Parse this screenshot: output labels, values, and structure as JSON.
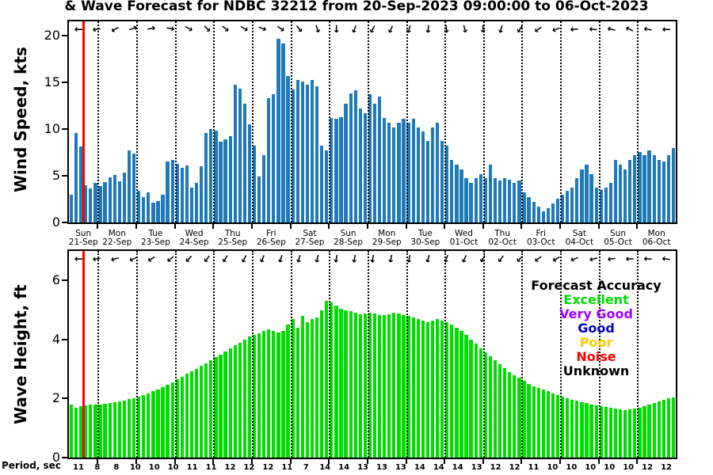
{
  "title": "& Wave Forecast for NDBC 32212 from 20-Sep-2023 09:00:00 to 06-Oct-2023",
  "legend": {
    "heading": "Forecast Accuracy",
    "items": [
      {
        "label": "Excellent",
        "color": "#00DD00"
      },
      {
        "label": "Very Good",
        "color": "#A000FF"
      },
      {
        "label": "Good",
        "color": "#0000C8"
      },
      {
        "label": "Poor",
        "color": "#FFC800"
      },
      {
        "label": "Noise",
        "color": "#FF0000"
      },
      {
        "label": "Unknown",
        "color": "#000000"
      }
    ]
  },
  "x_axis": {
    "lead_in_bars": 6,
    "bars_per_day": 8,
    "num_day_boundaries": 15,
    "red_line_slot": 3,
    "first_label_center_slot": 3,
    "day_labels": [
      {
        "day": "Sun",
        "date": "21-Sep"
      },
      {
        "day": "Mon",
        "date": "22-Sep"
      },
      {
        "day": "Tue",
        "date": "23-Sep"
      },
      {
        "day": "Wed",
        "date": "24-Sep"
      },
      {
        "day": "Thu",
        "date": "25-Sep"
      },
      {
        "day": "Fri",
        "date": "26-Sep"
      },
      {
        "day": "Sat",
        "date": "27-Sep"
      },
      {
        "day": "Sun",
        "date": "28-Sep"
      },
      {
        "day": "Mon",
        "date": "29-Sep"
      },
      {
        "day": "Tue",
        "date": "30-Sep"
      },
      {
        "day": "Wed",
        "date": "01-Oct"
      },
      {
        "day": "Thu",
        "date": "02-Oct"
      },
      {
        "day": "Fri",
        "date": "03-Oct"
      },
      {
        "day": "Sat",
        "date": "04-Oct"
      },
      {
        "day": "Sun",
        "date": "05-Oct"
      },
      {
        "day": "Mon",
        "date": "06-Oct"
      }
    ]
  },
  "chart_data": [
    {
      "type": "bar",
      "panel": "wind",
      "title": "& Wave Forecast for NDBC 32212 from 20-Sep-2023 09:00:00 to 06-Oct-2023",
      "ylabel": "Wind Speed, kts",
      "ylim": [
        0,
        21.5
      ],
      "yticks": [
        0,
        5,
        10,
        15,
        20
      ],
      "bar_color": "#1E7AB8",
      "grid": "vertical-dotted-daily",
      "values": [
        3.0,
        9.6,
        8.1,
        4.0,
        3.6,
        4.2,
        3.9,
        4.3,
        4.8,
        5.1,
        4.4,
        5.3,
        7.7,
        7.4,
        3.4,
        2.7,
        3.2,
        2.1,
        2.3,
        3.0,
        6.5,
        6.7,
        6.3,
        5.8,
        6.1,
        3.7,
        4.2,
        6.0,
        9.6,
        10.0,
        9.8,
        8.6,
        8.9,
        9.2,
        14.7,
        14.3,
        12.7,
        10.5,
        8.2,
        4.9,
        7.2,
        13.3,
        13.7,
        19.6,
        19.1,
        15.7,
        14.2,
        15.2,
        15.1,
        14.7,
        15.2,
        14.6,
        8.2,
        7.7,
        11.2,
        11.1,
        11.3,
        12.7,
        13.8,
        14.1,
        12.2,
        11.7,
        13.7,
        12.7,
        13.5,
        11.2,
        10.7,
        10.2,
        10.7,
        11.1,
        10.7,
        11.1,
        10.2,
        9.7,
        8.7,
        10.2,
        10.7,
        8.7,
        8.2,
        6.7,
        6.2,
        5.7,
        4.7,
        4.2,
        4.7,
        5.2,
        4.7,
        6.2,
        4.7,
        4.5,
        4.7,
        4.6,
        4.2,
        4.5,
        3.2,
        2.7,
        2.2,
        1.7,
        1.2,
        1.5,
        2.0,
        2.5,
        3.0,
        3.4,
        3.7,
        4.7,
        5.7,
        6.2,
        5.2,
        3.7,
        3.5,
        3.7,
        4.2,
        6.7,
        6.2,
        5.7,
        6.7,
        7.2,
        7.5,
        7.2,
        7.7,
        7.2,
        6.7,
        6.5,
        7.2,
        8.0
      ],
      "direction_arrows_deg": [
        180,
        170,
        150,
        340,
        350,
        10,
        30,
        45,
        40,
        30,
        20,
        35,
        50,
        70,
        90,
        110,
        120,
        115,
        105,
        95,
        85,
        75,
        90,
        105,
        125,
        145,
        160,
        175,
        185,
        195,
        205,
        190,
        180
      ]
    },
    {
      "type": "bar",
      "panel": "wave",
      "ylabel": "Wave Height, ft",
      "ylim": [
        0,
        7
      ],
      "yticks": [
        0,
        2,
        4,
        6
      ],
      "bar_color": "#00DD00",
      "grid": "vertical-dotted-daily",
      "values": [
        1.8,
        1.7,
        1.75,
        1.78,
        1.8,
        1.8,
        1.8,
        1.82,
        1.85,
        1.88,
        1.9,
        1.94,
        1.98,
        2.02,
        2.07,
        2.12,
        2.18,
        2.25,
        2.32,
        2.4,
        2.48,
        2.56,
        2.65,
        2.74,
        2.83,
        2.92,
        3.01,
        3.1,
        3.2,
        3.3,
        3.4,
        3.5,
        3.6,
        3.7,
        3.8,
        3.9,
        4.0,
        4.1,
        4.15,
        4.2,
        4.3,
        4.35,
        4.3,
        4.25,
        4.3,
        4.5,
        4.7,
        4.4,
        4.8,
        4.6,
        4.7,
        4.75,
        5.0,
        5.3,
        5.25,
        5.15,
        5.05,
        5.0,
        4.95,
        4.9,
        4.85,
        4.88,
        4.9,
        4.87,
        4.84,
        4.82,
        4.85,
        4.9,
        4.88,
        4.84,
        4.8,
        4.76,
        4.7,
        4.65,
        4.6,
        4.65,
        4.7,
        4.65,
        4.6,
        4.5,
        4.4,
        4.28,
        4.15,
        4.0,
        3.86,
        3.7,
        3.56,
        3.42,
        3.3,
        3.16,
        3.02,
        2.9,
        2.8,
        2.7,
        2.6,
        2.5,
        2.42,
        2.35,
        2.3,
        2.24,
        2.18,
        2.12,
        2.06,
        2.0,
        1.96,
        1.92,
        1.88,
        1.84,
        1.8,
        1.77,
        1.74,
        1.71,
        1.68,
        1.65,
        1.63,
        1.62,
        1.63,
        1.66,
        1.7,
        1.75,
        1.8,
        1.85,
        1.9,
        1.95,
        2.0,
        2.05
      ],
      "direction_arrows_deg": [
        180,
        172,
        164,
        156,
        148,
        140,
        133,
        127,
        121,
        116,
        112,
        108,
        105,
        102,
        100,
        99,
        99,
        100,
        102,
        105,
        109,
        114,
        120,
        127,
        134,
        142,
        150,
        158,
        165,
        172,
        178,
        183,
        187
      ],
      "period_label": "Period, sec",
      "period_values": [
        11,
        8,
        8,
        10,
        10,
        10,
        11,
        11,
        12,
        12,
        12,
        11,
        7,
        14,
        14,
        13,
        13,
        13,
        14,
        14,
        14,
        13,
        12,
        12,
        11,
        10,
        10,
        10,
        10,
        10,
        12,
        12
      ]
    }
  ]
}
